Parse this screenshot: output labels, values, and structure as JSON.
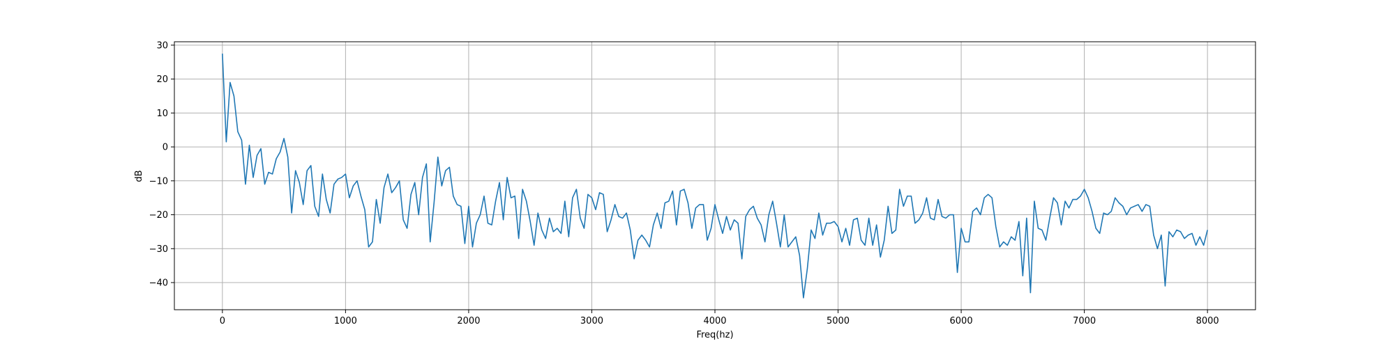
{
  "chart_data": {
    "type": "line",
    "xlabel": "Freq(hz)",
    "ylabel": "dB",
    "xlim": [
      -390,
      8390
    ],
    "ylim": [
      -48,
      31
    ],
    "xticks": [
      0,
      1000,
      2000,
      3000,
      4000,
      5000,
      6000,
      7000,
      8000
    ],
    "xtick_labels": [
      "0",
      "1000",
      "2000",
      "3000",
      "4000",
      "5000",
      "6000",
      "7000",
      "8000"
    ],
    "yticks": [
      30,
      20,
      10,
      0,
      -10,
      -20,
      -30,
      -40
    ],
    "ytick_labels": [
      "30",
      "20",
      "10",
      "0",
      "−10",
      "−20",
      "−30",
      "−40"
    ],
    "grid": true,
    "line_color": "#1f77b4",
    "series": [
      {
        "x": [
          0,
          31.3,
          62.5,
          93.8,
          125,
          156.3,
          187.5,
          218.8,
          250,
          281.3,
          312.5,
          343.8,
          375,
          406.3,
          437.5,
          468.8,
          500,
          531.3,
          562.5,
          593.8,
          625,
          656.3,
          687.5,
          718.8,
          750,
          781.3,
          812.5,
          843.8,
          875,
          906.3,
          937.5,
          968.8,
          1000,
          1031.3,
          1062.5,
          1093.8,
          1125,
          1156.3,
          1187.5,
          1218.8,
          1250,
          1281.3,
          1312.5,
          1343.8,
          1375,
          1406.3,
          1437.5,
          1468.8,
          1500,
          1531.3,
          1562.5,
          1593.8,
          1625,
          1656.3,
          1687.5,
          1718.8,
          1750,
          1781.3,
          1812.5,
          1843.8,
          1875,
          1906.3,
          1937.5,
          1968.8,
          2000,
          2031.3,
          2062.5,
          2093.8,
          2125,
          2156.3,
          2187.5,
          2218.8,
          2250,
          2281.3,
          2312.5,
          2343.8,
          2375,
          2406.3,
          2437.5,
          2468.8,
          2500,
          2531.3,
          2562.5,
          2593.8,
          2625,
          2656.3,
          2687.5,
          2718.8,
          2750,
          2781.3,
          2812.5,
          2843.8,
          2875,
          2906.3,
          2937.5,
          2968.8,
          3000,
          3031.3,
          3062.5,
          3093.8,
          3125,
          3156.3,
          3187.5,
          3218.8,
          3250,
          3281.3,
          3312.5,
          3343.8,
          3375,
          3406.3,
          3437.5,
          3468.8,
          3500,
          3531.3,
          3562.5,
          3593.8,
          3625,
          3656.3,
          3687.5,
          3718.8,
          3750,
          3781.3,
          3812.5,
          3843.8,
          3875,
          3906.3,
          3937.5,
          3968.8,
          4000,
          4031.3,
          4062.5,
          4093.8,
          4125,
          4156.3,
          4187.5,
          4218.8,
          4250,
          4281.3,
          4312.5,
          4343.8,
          4375,
          4406.3,
          4437.5,
          4468.8,
          4500,
          4531.3,
          4562.5,
          4593.8,
          4625,
          4656.3,
          4687.5,
          4718.8,
          4750,
          4781.3,
          4812.5,
          4843.8,
          4875,
          4906.3,
          4937.5,
          4968.8,
          5000,
          5031.3,
          5062.5,
          5093.8,
          5125,
          5156.3,
          5187.5,
          5218.8,
          5250,
          5281.3,
          5312.5,
          5343.8,
          5375,
          5406.3,
          5437.5,
          5468.8,
          5500,
          5531.3,
          5562.5,
          5593.8,
          5625,
          5656.3,
          5687.5,
          5718.8,
          5750,
          5781.3,
          5812.5,
          5843.8,
          5875,
          5906.3,
          5937.5,
          5968.8,
          6000,
          6031.3,
          6062.5,
          6093.8,
          6125,
          6156.3,
          6187.5,
          6218.8,
          6250,
          6281.3,
          6312.5,
          6343.8,
          6375,
          6406.3,
          6437.5,
          6468.8,
          6500,
          6531.3,
          6562.5,
          6593.8,
          6625,
          6656.3,
          6687.5,
          6718.8,
          6750,
          6781.3,
          6812.5,
          6843.8,
          6875,
          6906.3,
          6937.5,
          6968.8,
          7000,
          7031.3,
          7062.5,
          7093.8,
          7125,
          7156.3,
          7187.5,
          7218.8,
          7250,
          7281.3,
          7312.5,
          7343.8,
          7375,
          7406.3,
          7437.5,
          7468.8,
          7500,
          7531.3,
          7562.5,
          7593.8,
          7625,
          7656.3,
          7687.5,
          7718.8,
          7750,
          7781.3,
          7812.5,
          7843.8,
          7875,
          7906.3,
          7937.5,
          7968.8,
          8000
        ],
        "values": [
          27.5,
          1.5,
          19,
          15,
          4.5,
          2,
          -11,
          0.5,
          -9,
          -2.5,
          -0.5,
          -11,
          -7.5,
          -8,
          -3.5,
          -1.5,
          2.5,
          -3,
          -19.5,
          -7,
          -10.5,
          -17,
          -7,
          -5.5,
          -17.5,
          -20.5,
          -8,
          -15.5,
          -19.5,
          -11,
          -9.5,
          -9,
          -8,
          -15,
          -11.5,
          -10,
          -14.5,
          -18.5,
          -29.5,
          -28,
          -15.5,
          -22.5,
          -12,
          -8,
          -13.5,
          -12,
          -10,
          -21.5,
          -24,
          -14,
          -10.5,
          -20,
          -9,
          -5,
          -28,
          -16.5,
          -3,
          -11.5,
          -7,
          -6,
          -14.5,
          -17,
          -17.5,
          -28.5,
          -17.5,
          -29.5,
          -22.5,
          -20,
          -14.5,
          -22.5,
          -23,
          -16,
          -10.5,
          -21.5,
          -9,
          -15,
          -14.5,
          -27,
          -12.5,
          -16,
          -22,
          -29,
          -19.5,
          -24.5,
          -27,
          -21,
          -25,
          -24,
          -25.5,
          -16,
          -26.5,
          -15,
          -12.5,
          -21,
          -24,
          -14,
          -15,
          -18.5,
          -13.5,
          -14,
          -25,
          -21.5,
          -17,
          -20.5,
          -21,
          -19.5,
          -24.5,
          -33,
          -27.5,
          -26,
          -27.5,
          -29.5,
          -23,
          -19.5,
          -24,
          -16.5,
          -16,
          -13,
          -23,
          -13,
          -12.5,
          -16.5,
          -24,
          -18,
          -17,
          -17,
          -27.5,
          -24,
          -17,
          -21.5,
          -25.5,
          -20.5,
          -24.5,
          -21.5,
          -22.5,
          -33,
          -20.5,
          -18.5,
          -17.5,
          -21,
          -23,
          -28,
          -20,
          -16,
          -22.5,
          -29.5,
          -20,
          -29.5,
          -28,
          -26.5,
          -32,
          -44.5,
          -36,
          -24.5,
          -27,
          -19.5,
          -26,
          -22.5,
          -22.5,
          -22,
          -23.5,
          -28,
          -24,
          -29,
          -21.5,
          -21,
          -27.5,
          -29,
          -21,
          -29,
          -23,
          -32.5,
          -27.5,
          -17.5,
          -25.5,
          -24.5,
          -12.5,
          -17.5,
          -14.5,
          -14.5,
          -22.5,
          -21.5,
          -19.5,
          -15,
          -21,
          -21.5,
          -15.5,
          -20.5,
          -21,
          -20,
          -20,
          -37,
          -24,
          -28,
          -28,
          -19,
          -18,
          -20,
          -15,
          -14,
          -15,
          -23.5,
          -29.5,
          -28,
          -29,
          -26.5,
          -27.5,
          -22,
          -38,
          -21,
          -43,
          -16,
          -24,
          -24.5,
          -27.5,
          -21,
          -15,
          -16.5,
          -23,
          -16,
          -18,
          -15.5,
          -15.5,
          -14.5,
          -12.5,
          -15,
          -19,
          -24,
          -25.5,
          -19.5,
          -20,
          -19,
          -15,
          -16.5,
          -17.5,
          -20,
          -18,
          -17.5,
          -17,
          -19,
          -17,
          -17.5,
          -26,
          -30,
          -26,
          -41,
          -25,
          -26.5,
          -24.5,
          -25,
          -27,
          -26,
          -25.5,
          -29,
          -26.5,
          -29,
          -24.5
        ]
      }
    ]
  }
}
